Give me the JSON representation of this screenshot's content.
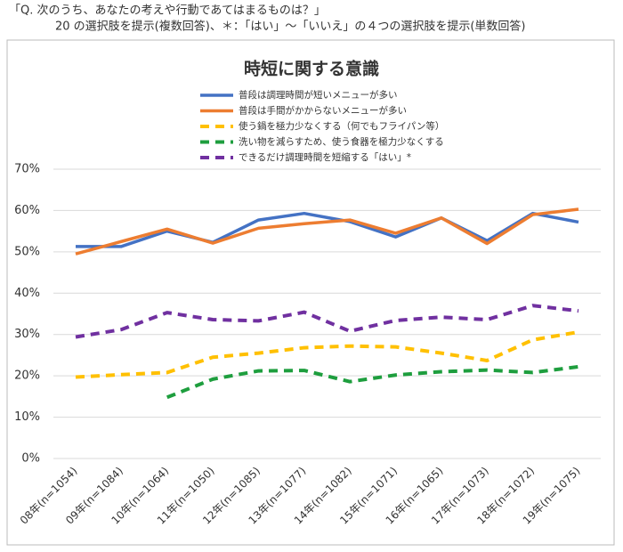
{
  "header": {
    "question": "「Q. 次のうち、あなたの考えや行動であてはまるものは？」",
    "note": "20 の選択肢を提示(複数回答)、＊：「はい」～「いいえ」の４つの選択肢を提示(単数回答)"
  },
  "chart_data": {
    "type": "line",
    "title": "時短に関する意識",
    "categories": [
      "08年(n=1054)",
      "09年(n=1084)",
      "10年(n=1064)",
      "11年(n=1050)",
      "12年(n=1085)",
      "13年(n=1077)",
      "14年(n=1082)",
      "15年(n=1071)",
      "16年(n=1065)",
      "17年(n=1073)",
      "18年(n=1072)",
      "19年(n=1075)"
    ],
    "series": [
      {
        "name": "普段は調理時間が短いメニューが多い",
        "color": "#4472c4",
        "dashed": false,
        "values": [
          51.3,
          51.3,
          55,
          52.3,
          57.7,
          59.3,
          57.3,
          53.6,
          58.2,
          52.7,
          59.3,
          57.2
        ]
      },
      {
        "name": "普段は手間がかからないメニューが多い",
        "color": "#ed7d31",
        "dashed": false,
        "values": [
          49.5,
          52.5,
          55.5,
          52.1,
          55.7,
          56.8,
          57.7,
          54.5,
          58.2,
          52,
          59,
          60.3
        ]
      },
      {
        "name": "使う鍋を極力少なくする（何でもフライパン等）",
        "color": "#ffc000",
        "dashed": true,
        "values": [
          19.7,
          20.3,
          20.8,
          24.5,
          25.5,
          26.8,
          27.2,
          27,
          25.5,
          23.7,
          28.7,
          30.6
        ]
      },
      {
        "name": "洗い物を減らすため、使う食器を極力少なくする",
        "color": "#1e9e3e",
        "dashed": true,
        "values": [
          null,
          null,
          14.8,
          19.2,
          21.2,
          21.3,
          18.6,
          20.2,
          21,
          21.4,
          20.8,
          22.2
        ]
      },
      {
        "name": "できるだけ調理時間を短縮する「はい」*",
        "color": "#7030a0",
        "dashed": true,
        "values": [
          29.4,
          31.2,
          35.3,
          33.6,
          33.3,
          35.4,
          30.8,
          33.4,
          34.2,
          33.6,
          37,
          35.7
        ]
      }
    ],
    "ylim": [
      0,
      70
    ],
    "yticks": [
      {
        "value": 0,
        "label": "0%"
      },
      {
        "value": 10,
        "label": "10%"
      },
      {
        "value": 20,
        "label": "20%"
      },
      {
        "value": 30,
        "label": "30%"
      },
      {
        "value": 40,
        "label": "40%"
      },
      {
        "value": 50,
        "label": "50%"
      },
      {
        "value": 60,
        "label": "60%"
      },
      {
        "value": 70,
        "label": "70%"
      }
    ],
    "grid": true
  }
}
